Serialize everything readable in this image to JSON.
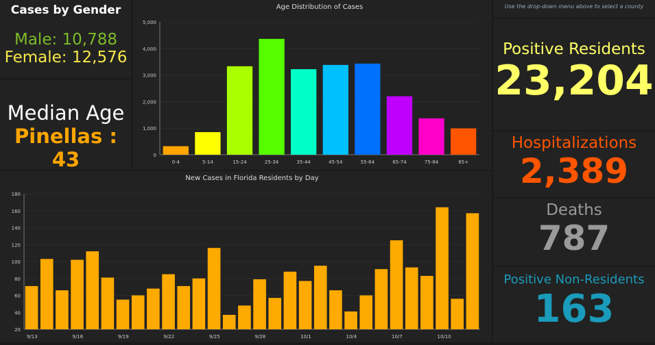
{
  "gender": {
    "title": "Cases by Gender",
    "male": "Male: 10,788",
    "female": "Female: 12,576",
    "male_color": "#7dbb2a",
    "female_color": "#f5e84a"
  },
  "median": {
    "title": "Median Age",
    "value": "Pinellas : 43",
    "color": "#ffa500"
  },
  "note": "Use the drop-down menu above to select a county",
  "positive": {
    "label": "Positive Residents",
    "value": "23,204",
    "color": "#ffff66"
  },
  "hosp": {
    "label": "Hospitalizations",
    "value": "2,389",
    "color": "#ff5500"
  },
  "deaths": {
    "label": "Deaths",
    "value": "787",
    "color": "#9a9a9a"
  },
  "nonres": {
    "label": "Positive Non-Residents",
    "value": "163",
    "color": "#1a9bbb"
  },
  "chart_data": [
    {
      "type": "bar",
      "title": "Age Distribution of Cases",
      "xlabel": "",
      "ylabel": "",
      "ylim": [
        0,
        5000
      ],
      "yticks": [
        "0",
        "1,000",
        "2,000",
        "3,000",
        "4,000",
        "5,000"
      ],
      "grid": true,
      "categories": [
        "0-4",
        "5-14",
        "15-24",
        "25-34",
        "35-44",
        "45-54",
        "55-64",
        "65-74",
        "75-84",
        "85+"
      ],
      "values": [
        320,
        850,
        3330,
        4360,
        3220,
        3380,
        3430,
        2200,
        1370,
        990
      ],
      "colors": [
        "#ffa500",
        "#ffff00",
        "#aaff00",
        "#55ff00",
        "#00ffc8",
        "#00c0ff",
        "#0070ff",
        "#c000ff",
        "#ff00c8",
        "#ff5500"
      ]
    },
    {
      "type": "bar",
      "title": "New Cases in Florida Residents by Day",
      "xlabel": "",
      "ylabel": "",
      "ylim": [
        20,
        180
      ],
      "yticks": [
        "20",
        "40",
        "60",
        "80",
        "100",
        "120",
        "140",
        "160",
        "180"
      ],
      "grid": true,
      "color": "#ffaa00",
      "categories": [
        "9/13",
        "9/14",
        "9/15",
        "9/16",
        "9/17",
        "9/18",
        "9/19",
        "9/20",
        "9/21",
        "9/22",
        "9/23",
        "9/24",
        "9/25",
        "9/26",
        "9/27",
        "9/28",
        "9/29",
        "9/30",
        "10/1",
        "10/2",
        "10/3",
        "10/4",
        "10/5",
        "10/6",
        "10/7",
        "10/8",
        "10/9",
        "10/10",
        "10/11",
        "10/12"
      ],
      "xticks": [
        "9/13",
        "9/16",
        "9/19",
        "9/22",
        "9/25",
        "9/28",
        "10/1",
        "10/4",
        "10/7",
        "10/10"
      ],
      "values": [
        71,
        103,
        66,
        102,
        112,
        81,
        55,
        60,
        68,
        85,
        71,
        80,
        116,
        37,
        48,
        79,
        57,
        88,
        77,
        95,
        66,
        41,
        60,
        91,
        125,
        93,
        83,
        164,
        56,
        157
      ]
    }
  ]
}
